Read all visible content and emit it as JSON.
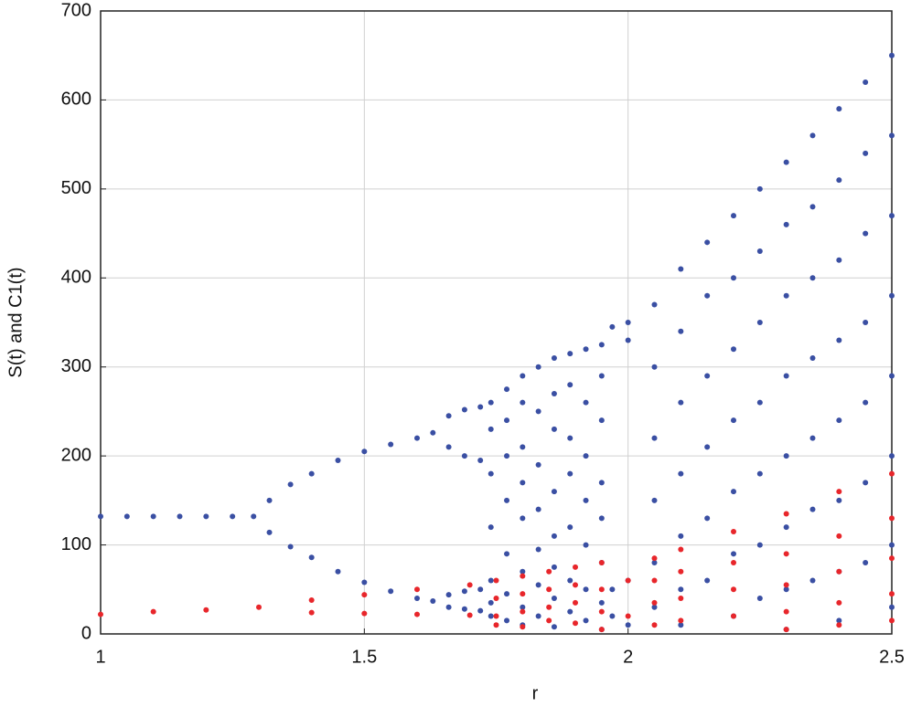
{
  "chart_data": {
    "type": "scatter",
    "xlabel": "r",
    "ylabel": "S(t) and C1(t)",
    "xlim": [
      1,
      2.5
    ],
    "xticks": [
      1,
      1.5,
      2,
      2.5
    ],
    "ylim": [
      0,
      700
    ],
    "yticks": [
      0,
      100,
      200,
      300,
      400,
      500,
      600,
      700
    ],
    "grid": true,
    "series": [
      {
        "color": "#3a4fa3",
        "x": [
          1,
          1.05,
          1.1,
          1.15,
          1.2,
          1.25,
          1.29,
          1.32,
          1.32,
          1.36,
          1.36,
          1.4,
          1.4,
          1.45,
          1.45,
          1.5,
          1.5,
          1.55,
          1.55,
          1.6,
          1.6,
          1.63,
          1.63,
          1.66,
          1.66,
          1.66,
          1.66,
          1.69,
          1.69,
          1.69,
          1.69,
          1.72,
          1.72,
          1.72,
          1.72,
          1.74,
          1.74,
          1.74,
          1.74,
          1.74,
          1.74,
          1.74,
          1.77,
          1.77,
          1.77,
          1.77,
          1.77,
          1.77,
          1.77,
          1.8,
          1.8,
          1.8,
          1.8,
          1.8,
          1.8,
          1.8,
          1.8,
          1.83,
          1.83,
          1.83,
          1.83,
          1.83,
          1.83,
          1.83,
          1.86,
          1.86,
          1.86,
          1.86,
          1.86,
          1.86,
          1.86,
          1.86,
          1.89,
          1.89,
          1.89,
          1.89,
          1.89,
          1.89,
          1.89,
          1.92,
          1.92,
          1.92,
          1.92,
          1.92,
          1.92,
          1.92,
          1.95,
          1.95,
          1.95,
          1.95,
          1.95,
          1.95,
          1.95,
          1.95,
          1.97,
          1.97,
          1.97,
          2,
          2,
          2,
          2,
          2.05,
          2.05,
          2.05,
          2.05,
          2.05,
          2.05,
          2.1,
          2.1,
          2.1,
          2.1,
          2.1,
          2.1,
          2.1,
          2.15,
          2.15,
          2.15,
          2.15,
          2.15,
          2.15,
          2.2,
          2.2,
          2.2,
          2.2,
          2.2,
          2.2,
          2.2,
          2.25,
          2.25,
          2.25,
          2.25,
          2.25,
          2.25,
          2.25,
          2.3,
          2.3,
          2.3,
          2.3,
          2.3,
          2.3,
          2.3,
          2.3,
          2.35,
          2.35,
          2.35,
          2.35,
          2.35,
          2.35,
          2.35,
          2.4,
          2.4,
          2.4,
          2.4,
          2.4,
          2.4,
          2.4,
          2.4,
          2.45,
          2.45,
          2.45,
          2.45,
          2.45,
          2.45,
          2.45,
          2.5,
          2.5,
          2.5,
          2.5,
          2.5,
          2.5,
          2.5,
          2.5
        ],
        "values": [
          132,
          132,
          132,
          132,
          132,
          132,
          132,
          150,
          114,
          168,
          98,
          180,
          86,
          195,
          70,
          205,
          58,
          213,
          48,
          220,
          40,
          226,
          37,
          245,
          210,
          44,
          30,
          252,
          200,
          48,
          28,
          255,
          195,
          50,
          26,
          260,
          230,
          180,
          120,
          60,
          35,
          20,
          275,
          240,
          200,
          150,
          90,
          45,
          15,
          290,
          260,
          210,
          170,
          130,
          70,
          30,
          10,
          300,
          250,
          190,
          140,
          95,
          55,
          20,
          310,
          270,
          230,
          160,
          110,
          75,
          40,
          8,
          315,
          280,
          220,
          180,
          120,
          60,
          25,
          320,
          260,
          200,
          150,
          100,
          50,
          15,
          325,
          290,
          240,
          170,
          130,
          80,
          35,
          5,
          345,
          50,
          20,
          350,
          330,
          60,
          10,
          370,
          300,
          220,
          150,
          80,
          30,
          410,
          340,
          260,
          180,
          110,
          50,
          10,
          440,
          380,
          290,
          210,
          130,
          60,
          470,
          400,
          320,
          240,
          160,
          90,
          20,
          500,
          430,
          350,
          260,
          180,
          100,
          40,
          530,
          460,
          380,
          290,
          200,
          120,
          50,
          5,
          560,
          480,
          400,
          310,
          220,
          140,
          60,
          590,
          510,
          420,
          330,
          240,
          150,
          70,
          15,
          620,
          540,
          450,
          350,
          260,
          170,
          80,
          650,
          560,
          470,
          380,
          290,
          200,
          100,
          30
        ]
      },
      {
        "color": "#e8262b",
        "x": [
          1,
          1.1,
          1.2,
          1.3,
          1.4,
          1.4,
          1.5,
          1.5,
          1.6,
          1.6,
          1.7,
          1.7,
          1.75,
          1.75,
          1.75,
          1.75,
          1.8,
          1.8,
          1.8,
          1.8,
          1.85,
          1.85,
          1.85,
          1.85,
          1.9,
          1.9,
          1.9,
          1.9,
          1.95,
          1.95,
          1.95,
          1.95,
          2,
          2,
          2.05,
          2.05,
          2.05,
          2.05,
          2.1,
          2.1,
          2.1,
          2.1,
          2.2,
          2.2,
          2.2,
          2.2,
          2.3,
          2.3,
          2.3,
          2.3,
          2.3,
          2.4,
          2.4,
          2.4,
          2.4,
          2.4,
          2.5,
          2.5,
          2.5,
          2.5,
          2.5
        ],
        "values": [
          22,
          25,
          27,
          30,
          38,
          24,
          44,
          23,
          50,
          22,
          55,
          21,
          60,
          40,
          20,
          10,
          65,
          45,
          25,
          8,
          70,
          50,
          30,
          15,
          75,
          55,
          35,
          12,
          80,
          50,
          25,
          5,
          60,
          20,
          85,
          60,
          35,
          10,
          95,
          70,
          40,
          15,
          115,
          80,
          50,
          20,
          135,
          90,
          55,
          25,
          5,
          160,
          110,
          70,
          35,
          10,
          180,
          130,
          85,
          45,
          15
        ]
      }
    ]
  }
}
